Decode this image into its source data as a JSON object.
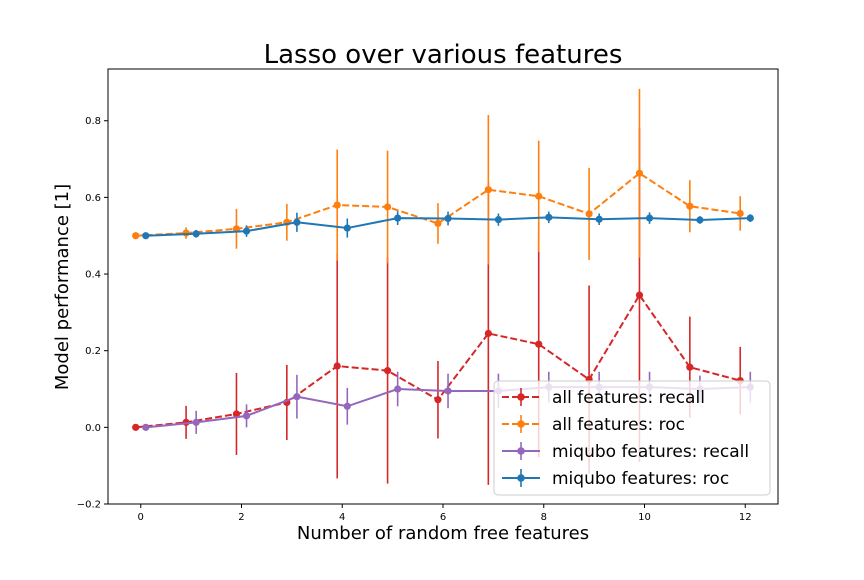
{
  "chart_data": {
    "type": "line",
    "title": "Lasso over various features",
    "xlabel": "Number of random free features",
    "ylabel": "Model performance [1]",
    "xlim": [
      -0.65,
      12.65
    ],
    "ylim": [
      -0.2,
      0.935
    ],
    "xticks": [
      0,
      2,
      4,
      6,
      8,
      10,
      12
    ],
    "yticks": [
      -0.2,
      0.0,
      0.2,
      0.4,
      0.6,
      0.8
    ],
    "grid": false,
    "legend": {
      "position": "lower-right"
    },
    "series": [
      {
        "name": "all features: recall",
        "color": "#d62728",
        "line_style": "dashed",
        "x_offset": -0.1,
        "x": [
          0,
          1,
          2,
          3,
          4,
          5,
          6,
          7,
          8,
          9,
          10,
          11,
          12
        ],
        "y": [
          0.0,
          0.013,
          0.035,
          0.065,
          0.16,
          0.148,
          0.072,
          0.245,
          0.217,
          0.125,
          0.345,
          0.157,
          0.122
        ],
        "err": [
          0.0,
          0.043,
          0.107,
          0.098,
          0.293,
          0.295,
          0.101,
          0.395,
          0.295,
          0.245,
          0.435,
          0.132,
          0.088
        ]
      },
      {
        "name": "all features: roc",
        "color": "#ff7f0e",
        "line_style": "dashed",
        "x_offset": -0.1,
        "x": [
          0,
          1,
          2,
          3,
          4,
          5,
          6,
          7,
          8,
          9,
          10,
          11,
          12
        ],
        "y": [
          0.5,
          0.507,
          0.518,
          0.535,
          0.58,
          0.575,
          0.532,
          0.62,
          0.603,
          0.557,
          0.663,
          0.577,
          0.558
        ],
        "err": [
          0.0,
          0.015,
          0.052,
          0.048,
          0.145,
          0.147,
          0.053,
          0.195,
          0.145,
          0.12,
          0.22,
          0.068,
          0.045
        ]
      },
      {
        "name": "miqubo features: recall",
        "color": "#9467bd",
        "line_style": "solid",
        "x_offset": 0.1,
        "x": [
          0,
          1,
          2,
          3,
          4,
          5,
          6,
          7,
          8,
          9,
          10,
          11,
          12
        ],
        "y": [
          0.0,
          0.013,
          0.03,
          0.08,
          0.055,
          0.1,
          0.095,
          0.095,
          0.105,
          0.105,
          0.105,
          0.1,
          0.105
        ],
        "err": [
          0.0,
          0.03,
          0.03,
          0.057,
          0.048,
          0.045,
          0.045,
          0.045,
          0.04,
          0.04,
          0.04,
          0.035,
          0.04
        ]
      },
      {
        "name": "miqubo features: roc",
        "color": "#1f77b4",
        "line_style": "solid",
        "x_offset": 0.1,
        "x": [
          0,
          1,
          2,
          3,
          4,
          5,
          6,
          7,
          8,
          9,
          10,
          11,
          12
        ],
        "y": [
          0.5,
          0.505,
          0.512,
          0.535,
          0.52,
          0.546,
          0.545,
          0.542,
          0.548,
          0.543,
          0.546,
          0.541,
          0.546
        ],
        "err": [
          0.0,
          0.01,
          0.015,
          0.025,
          0.025,
          0.018,
          0.018,
          0.016,
          0.015,
          0.015,
          0.015,
          0.01,
          0.01
        ]
      }
    ]
  }
}
